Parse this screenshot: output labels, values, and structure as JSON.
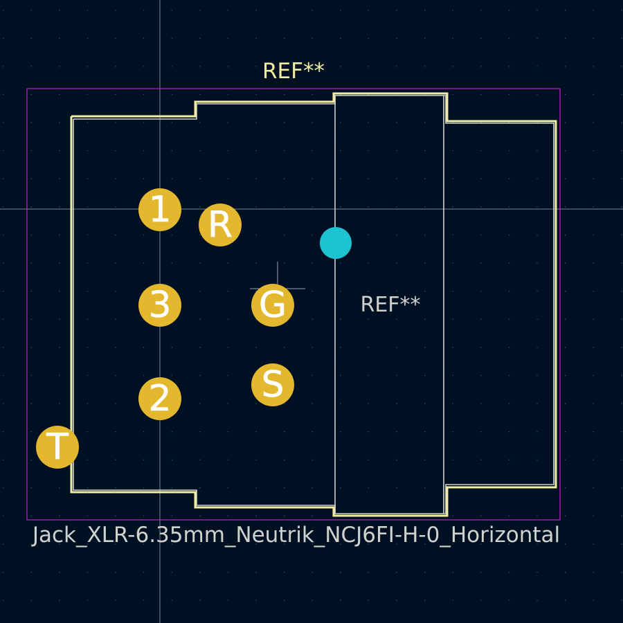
{
  "colors": {
    "background": "#001023",
    "silkscreen": "#f2eda1",
    "fab": "#d0d2cd",
    "courtyard": "#c81ec8",
    "pad": "#e3b72e",
    "pad_label": "#ffffff",
    "anchor": "#1ec3d2",
    "crosshair": "#9aa3ad",
    "grid_dot": "#4a5566"
  },
  "footprint": {
    "reference_silk": "REF**",
    "reference_fab": "REF**",
    "value": "Jack_XLR-6.35mm_Neutrik_NCJ6FI-H-0_Horizontal"
  },
  "pads": [
    {
      "name": "1"
    },
    {
      "name": "R"
    },
    {
      "name": "3"
    },
    {
      "name": "G"
    },
    {
      "name": "2"
    },
    {
      "name": "S"
    },
    {
      "name": "T"
    }
  ],
  "icons": {
    "anchor": "footprint-anchor-icon",
    "crosshair": "cursor-crosshair-icon"
  }
}
